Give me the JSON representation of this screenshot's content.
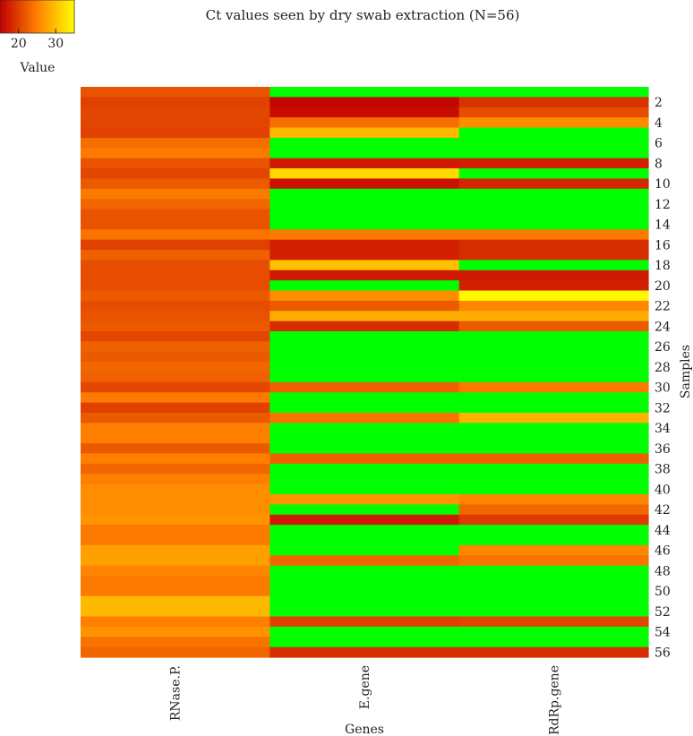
{
  "chart_data": {
    "type": "heatmap",
    "title": "Ct values seen by dry swab extraction (N=56)",
    "xlabel": "Genes",
    "ylabel": "Samples",
    "x_categories": [
      "RNase.P.",
      "E.gene",
      "RdRp.gene"
    ],
    "y_tick_labels": [
      "2",
      "4",
      "6",
      "8",
      "10",
      "12",
      "14",
      "16",
      "18",
      "20",
      "22",
      "24",
      "26",
      "28",
      "30",
      "32",
      "34",
      "36",
      "38",
      "40",
      "42",
      "44",
      "46",
      "48",
      "50",
      "52",
      "54",
      "56"
    ],
    "legend": {
      "title": "Value",
      "ticks": [
        20,
        30
      ],
      "range": [
        15,
        35
      ],
      "placement": "top-left",
      "low_color": "#c00000",
      "high_color": "#ffff00"
    },
    "na_color": "#00ff00",
    "rows": [
      {
        "sample": 1,
        "values": [
          21.5,
          null,
          null
        ]
      },
      {
        "sample": 2,
        "values": [
          20.0,
          15.5,
          19.0
        ]
      },
      {
        "sample": 3,
        "values": [
          20.5,
          16.0,
          21.0
        ]
      },
      {
        "sample": 4,
        "values": [
          20.5,
          23.5,
          26.0
        ]
      },
      {
        "sample": 5,
        "values": [
          20.0,
          29.5,
          null
        ]
      },
      {
        "sample": 6,
        "values": [
          23.5,
          null,
          null
        ]
      },
      {
        "sample": 7,
        "values": [
          24.5,
          null,
          null
        ]
      },
      {
        "sample": 8,
        "values": [
          21.5,
          17.0,
          17.5
        ]
      },
      {
        "sample": 9,
        "values": [
          20.5,
          32.0,
          null
        ]
      },
      {
        "sample": 10,
        "values": [
          22.0,
          16.5,
          18.0
        ]
      },
      {
        "sample": 11,
        "values": [
          24.5,
          null,
          null
        ]
      },
      {
        "sample": 12,
        "values": [
          23.0,
          null,
          null
        ]
      },
      {
        "sample": 13,
        "values": [
          21.5,
          null,
          null
        ]
      },
      {
        "sample": 14,
        "values": [
          21.5,
          null,
          null
        ]
      },
      {
        "sample": 15,
        "values": [
          24.0,
          24.5,
          24.5
        ]
      },
      {
        "sample": 16,
        "values": [
          20.0,
          17.5,
          18.5
        ]
      },
      {
        "sample": 17,
        "values": [
          22.5,
          17.5,
          18.5
        ]
      },
      {
        "sample": 18,
        "values": [
          21.0,
          30.0,
          null
        ]
      },
      {
        "sample": 19,
        "values": [
          21.0,
          17.0,
          17.0
        ]
      },
      {
        "sample": 20,
        "values": [
          21.0,
          null,
          17.5
        ]
      },
      {
        "sample": 21,
        "values": [
          22.0,
          26.0,
          34.5
        ]
      },
      {
        "sample": 22,
        "values": [
          21.0,
          22.0,
          25.5
        ]
      },
      {
        "sample": 23,
        "values": [
          21.5,
          28.5,
          28.5
        ]
      },
      {
        "sample": 24,
        "values": [
          22.0,
          18.5,
          22.0
        ]
      },
      {
        "sample": 25,
        "values": [
          20.5,
          null,
          null
        ]
      },
      {
        "sample": 26,
        "values": [
          22.5,
          null,
          null
        ]
      },
      {
        "sample": 27,
        "values": [
          22.0,
          null,
          null
        ]
      },
      {
        "sample": 28,
        "values": [
          23.0,
          null,
          null
        ]
      },
      {
        "sample": 29,
        "values": [
          22.5,
          null,
          null
        ]
      },
      {
        "sample": 30,
        "values": [
          20.5,
          22.5,
          24.5
        ]
      },
      {
        "sample": 31,
        "values": [
          24.5,
          null,
          null
        ]
      },
      {
        "sample": 32,
        "values": [
          20.0,
          null,
          null
        ]
      },
      {
        "sample": 33,
        "values": [
          22.0,
          24.0,
          29.0
        ]
      },
      {
        "sample": 34,
        "values": [
          25.0,
          null,
          null
        ]
      },
      {
        "sample": 35,
        "values": [
          25.0,
          null,
          null
        ]
      },
      {
        "sample": 36,
        "values": [
          22.0,
          null,
          null
        ]
      },
      {
        "sample": 37,
        "values": [
          25.0,
          22.5,
          22.5
        ]
      },
      {
        "sample": 38,
        "values": [
          23.0,
          null,
          null
        ]
      },
      {
        "sample": 39,
        "values": [
          25.0,
          null,
          null
        ]
      },
      {
        "sample": 40,
        "values": [
          26.0,
          null,
          null
        ]
      },
      {
        "sample": 41,
        "values": [
          26.0,
          26.5,
          25.5
        ]
      },
      {
        "sample": 42,
        "values": [
          26.0,
          null,
          23.0
        ]
      },
      {
        "sample": 43,
        "values": [
          26.5,
          17.0,
          19.5
        ]
      },
      {
        "sample": 44,
        "values": [
          24.5,
          null,
          null
        ]
      },
      {
        "sample": 45,
        "values": [
          24.5,
          null,
          null
        ]
      },
      {
        "sample": 46,
        "values": [
          27.5,
          null,
          25.5
        ]
      },
      {
        "sample": 47,
        "values": [
          27.5,
          23.0,
          24.0
        ]
      },
      {
        "sample": 48,
        "values": [
          25.5,
          null,
          null
        ]
      },
      {
        "sample": 49,
        "values": [
          24.5,
          null,
          null
        ]
      },
      {
        "sample": 50,
        "values": [
          24.5,
          null,
          null
        ]
      },
      {
        "sample": 51,
        "values": [
          29.5,
          null,
          null
        ]
      },
      {
        "sample": 52,
        "values": [
          29.5,
          null,
          null
        ]
      },
      {
        "sample": 53,
        "values": [
          25.0,
          20.0,
          20.5
        ]
      },
      {
        "sample": 54,
        "values": [
          26.5,
          null,
          null
        ]
      },
      {
        "sample": 55,
        "values": [
          24.0,
          null,
          null
        ]
      },
      {
        "sample": 56,
        "values": [
          23.0,
          18.5,
          18.5
        ]
      }
    ]
  }
}
